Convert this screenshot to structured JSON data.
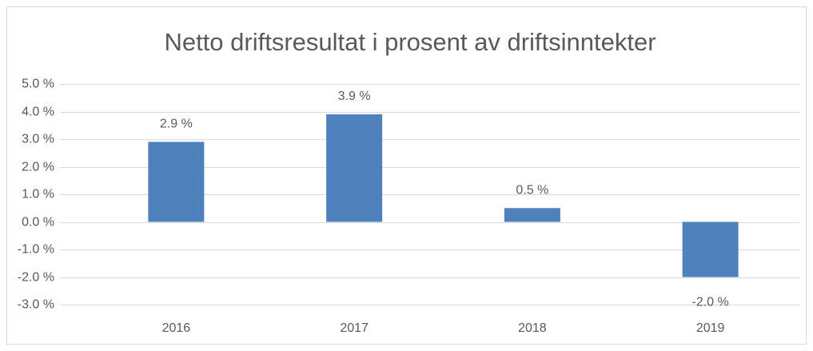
{
  "chart_data": {
    "type": "bar",
    "title": "Netto driftsresultat i prosent av driftsinntekter",
    "categories": [
      "2016",
      "2017",
      "2018",
      "2019"
    ],
    "values": [
      2.9,
      3.9,
      0.5,
      -2.0
    ],
    "value_labels": [
      "2.9 %",
      "3.9 %",
      "0.5 %",
      "-2.0 %"
    ],
    "color": "#4f81bd",
    "ylim": [
      -3,
      5
    ],
    "yticks": [
      {
        "value": -3,
        "label": "-3.0 %"
      },
      {
        "value": -2,
        "label": "-2.0 %"
      },
      {
        "value": -1,
        "label": "-1.0 %"
      },
      {
        "value": 0,
        "label": "0.0 %"
      },
      {
        "value": 1,
        "label": "1.0 %"
      },
      {
        "value": 2,
        "label": "2.0 %"
      },
      {
        "value": 3,
        "label": "3.0 %"
      },
      {
        "value": 4,
        "label": "4.0 %"
      },
      {
        "value": 5,
        "label": "5.0 %"
      }
    ],
    "grid": true
  }
}
